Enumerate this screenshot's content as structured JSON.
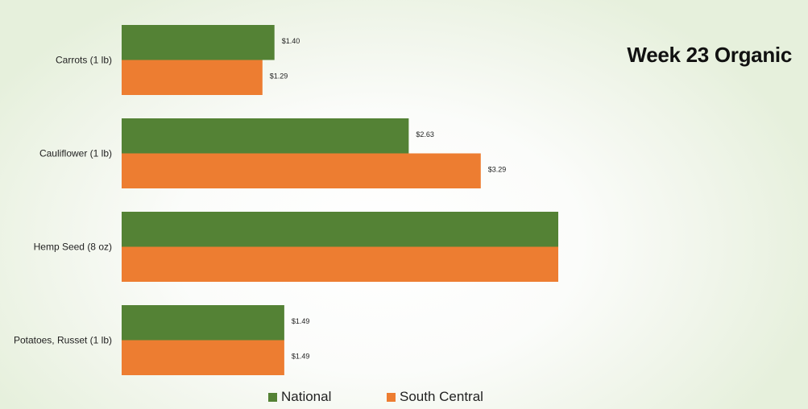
{
  "chart_data": {
    "type": "bar",
    "orientation": "horizontal",
    "title": "Week 23 Organic",
    "categories": [
      "Carrots (1 lb)",
      "Cauliflower (1 lb)",
      "Hemp Seed (8 oz)",
      "Potatoes, Russet (1 lb)"
    ],
    "series": [
      {
        "name": "National",
        "color": "#548235",
        "values": [
          1.4,
          2.63,
          4.0,
          1.49
        ],
        "labels": [
          "$1.40",
          "$2.63",
          "",
          "$1.49"
        ]
      },
      {
        "name": "South Central",
        "color": "#ED7D31",
        "values": [
          1.29,
          3.29,
          4.0,
          1.49
        ],
        "labels": [
          "$1.29",
          "$3.29",
          "",
          "$1.49"
        ]
      }
    ],
    "xlim": [
      0,
      5
    ],
    "grid": false,
    "legend": "bottom"
  }
}
